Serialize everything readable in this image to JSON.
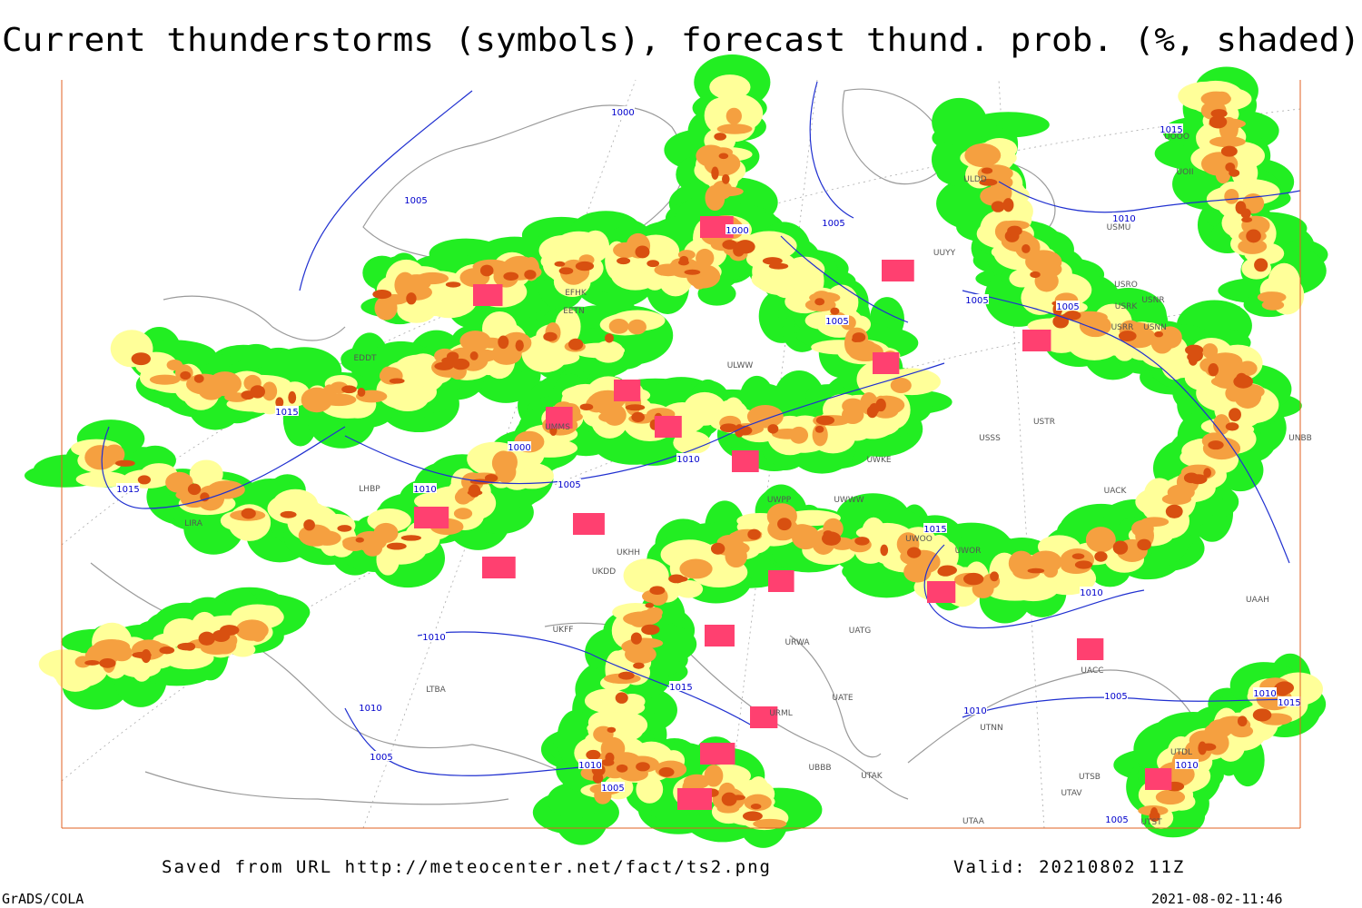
{
  "header": {
    "title": "Current thunderstorms (symbols), forecast thund. prob. (%, shaded)"
  },
  "map": {
    "isobar_labels": [
      "1000",
      "1005",
      "1000",
      "1005",
      "1010",
      "1015",
      "1005",
      "1005",
      "1005",
      "1015",
      "1000",
      "1010",
      "1005",
      "1010",
      "1015",
      "1015",
      "1010",
      "1010",
      "1015",
      "1010",
      "1005",
      "1010",
      "1010",
      "1015",
      "1005",
      "1010",
      "1010",
      "1005",
      "1005"
    ],
    "station_labels": [
      "EFHK",
      "EETN",
      "EDDT",
      "ULWW",
      "USSS",
      "USTR",
      "UWKE",
      "UWWW",
      "UWPP",
      "UWOO",
      "UWOR",
      "UACK",
      "UKDD",
      "UKHH",
      "UKFF",
      "URWA",
      "UATG",
      "UATE",
      "URML",
      "UBBB",
      "UTAK",
      "UTNN",
      "UTSB",
      "UTAV",
      "UTAA",
      "UTST",
      "LIRA",
      "LHBP",
      "UMMS",
      "ULDD",
      "UUYY",
      "USMU",
      "USRO",
      "USRK",
      "USNR",
      "USNN",
      "USRR",
      "UOOO",
      "UOII",
      "UNBB",
      "UAAH",
      "UACC",
      "UTDL",
      "LTBA"
    ]
  },
  "footer": {
    "source": "Saved from URL http://meteocenter.net/fact/ts2.png",
    "valid": "Valid: 20210802 11Z",
    "software": "GrADS/COLA",
    "timestamp": "2021-08-02-11:46"
  }
}
